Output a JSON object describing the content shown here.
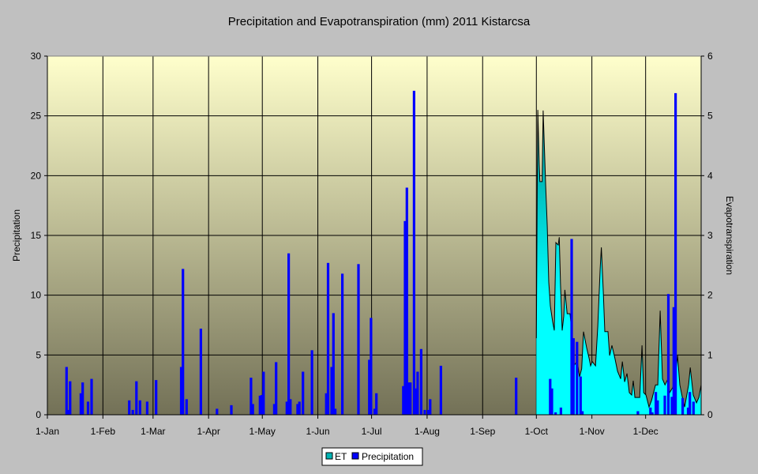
{
  "chart_data": {
    "type": "bar+area",
    "title": "Precipitation and Evapotranspiration (mm) 2011 Kistarcsa",
    "ylabel": "Precipitation",
    "y2label": "Evapotranspiration",
    "ylim": [
      0,
      30
    ],
    "y2lim": [
      0,
      6
    ],
    "yticks": [
      "0",
      "5",
      "10",
      "15",
      "20",
      "25",
      "30"
    ],
    "y2ticks": [
      "0",
      "1",
      "2",
      "3",
      "4",
      "5",
      "6"
    ],
    "xticks": [
      {
        "label": "1-Jan",
        "day": 0
      },
      {
        "label": "1-Feb",
        "day": 31
      },
      {
        "label": "1-Mar",
        "day": 59
      },
      {
        "label": "1-Apr",
        "day": 90
      },
      {
        "label": "1-May",
        "day": 120
      },
      {
        "label": "1-Jun",
        "day": 151
      },
      {
        "label": "1-Jul",
        "day": 181
      },
      {
        "label": "1-Aug",
        "day": 212
      },
      {
        "label": "1-Sep",
        "day": 243
      },
      {
        "label": "1-Oct",
        "day": 273
      },
      {
        "label": "1-Nov",
        "day": 304
      },
      {
        "label": "1-Dec",
        "day": 334
      }
    ],
    "days_in_year": 365,
    "grid": true,
    "legend": {
      "placement": "bottom",
      "items": [
        "ET",
        "Precipitation"
      ]
    },
    "colors": {
      "precipitation": "#0000ff",
      "et_top": "#009090",
      "et_bottom": "#00ffff",
      "plot_top": "#ffffcc",
      "plot_bottom": "#737157"
    },
    "series": [
      {
        "name": "Precipitation",
        "kind": "bar",
        "axis": "left",
        "points": [
          [
            10,
            4.0
          ],
          [
            11,
            0.4
          ],
          [
            12,
            2.8
          ],
          [
            18,
            1.8
          ],
          [
            19,
            2.7
          ],
          [
            22,
            1.1
          ],
          [
            24,
            3.0
          ],
          [
            45,
            1.2
          ],
          [
            47,
            0.4
          ],
          [
            49,
            2.8
          ],
          [
            51,
            1.2
          ],
          [
            55,
            1.1
          ],
          [
            60,
            2.9
          ],
          [
            74,
            4.0
          ],
          [
            75,
            12.2
          ],
          [
            77,
            1.3
          ],
          [
            85,
            7.2
          ],
          [
            94,
            0.5
          ],
          [
            102,
            0.8
          ],
          [
            113,
            3.1
          ],
          [
            114,
            0.9
          ],
          [
            118,
            1.6
          ],
          [
            119,
            1.65
          ],
          [
            120,
            3.6
          ],
          [
            126,
            0.9
          ],
          [
            127,
            4.4
          ],
          [
            133,
            1.1
          ],
          [
            134,
            13.5
          ],
          [
            135,
            1.3
          ],
          [
            139,
            0.9
          ],
          [
            140,
            1.1
          ],
          [
            142,
            3.6
          ],
          [
            147,
            5.4
          ],
          [
            155,
            1.8
          ],
          [
            156,
            12.7
          ],
          [
            158,
            4.0
          ],
          [
            159,
            8.5
          ],
          [
            160,
            0.5
          ],
          [
            164,
            11.8
          ],
          [
            173,
            12.6
          ],
          [
            179,
            4.6
          ],
          [
            180,
            8.1
          ],
          [
            182,
            0.5
          ],
          [
            183,
            1.8
          ],
          [
            198,
            2.4
          ],
          [
            199,
            16.2
          ],
          [
            200,
            19.0
          ],
          [
            201,
            2.7
          ],
          [
            202,
            2.7
          ],
          [
            204,
            27.1
          ],
          [
            205,
            2.2
          ],
          [
            206,
            3.6
          ],
          [
            208,
            5.5
          ],
          [
            210,
            0.4
          ],
          [
            212,
            0.4
          ],
          [
            213,
            1.3
          ],
          [
            219,
            4.1
          ],
          [
            261,
            3.1
          ],
          [
            280,
            3.0
          ],
          [
            281,
            2.2
          ],
          [
            283,
            0.2
          ],
          [
            286,
            0.6
          ],
          [
            292,
            14.7
          ],
          [
            293,
            6.4
          ],
          [
            295,
            6.1
          ],
          [
            297,
            3.2
          ],
          [
            298,
            0.3
          ],
          [
            329,
            0.3
          ],
          [
            336,
            0.6
          ],
          [
            337,
            0.2
          ],
          [
            339,
            1.9
          ],
          [
            340,
            1.2
          ],
          [
            344,
            1.6
          ],
          [
            346,
            10.1
          ],
          [
            348,
            1.5
          ],
          [
            349,
            9.0
          ],
          [
            350,
            26.9
          ],
          [
            354,
            1.4
          ],
          [
            357,
            0.6
          ],
          [
            358,
            1.9
          ],
          [
            360,
            1.1
          ]
        ]
      },
      {
        "name": "ET",
        "kind": "area",
        "axis": "right",
        "points": [
          [
            273.0,
            1.28
          ],
          [
            273.5,
            3.83
          ],
          [
            273.8,
            5.1
          ],
          [
            274.6,
            4.19
          ],
          [
            275.0,
            3.9
          ],
          [
            276.2,
            3.9
          ],
          [
            276.8,
            5.09
          ],
          [
            277.1,
            4.82
          ],
          [
            278.2,
            3.83
          ],
          [
            279.1,
            3.15
          ],
          [
            279.9,
            2.22
          ],
          [
            280.8,
            1.82
          ],
          [
            282.1,
            1.56
          ],
          [
            283.0,
            1.41
          ],
          [
            283.9,
            2.88
          ],
          [
            285.2,
            2.84
          ],
          [
            285.8,
            2.97
          ],
          [
            286.5,
            2.18
          ],
          [
            287.4,
            1.41
          ],
          [
            288.3,
            1.65
          ],
          [
            288.9,
            2.09
          ],
          [
            290.2,
            1.69
          ],
          [
            291.8,
            1.69
          ],
          [
            293.2,
            1.28
          ],
          [
            294.0,
            0.82
          ],
          [
            295.8,
            0.9
          ],
          [
            297.1,
            0.63
          ],
          [
            298.3,
            0.77
          ],
          [
            299.3,
            1.39
          ],
          [
            301.1,
            1.12
          ],
          [
            302.4,
            0.95
          ],
          [
            303.3,
            0.82
          ],
          [
            304.2,
            0.89
          ],
          [
            306.0,
            0.82
          ],
          [
            307.3,
            1.48
          ],
          [
            308.6,
            2.44
          ],
          [
            309.3,
            2.8
          ],
          [
            310.4,
            2.05
          ],
          [
            311.2,
            1.39
          ],
          [
            313.0,
            1.39
          ],
          [
            313.9,
            0.99
          ],
          [
            315.2,
            1.16
          ],
          [
            316.8,
            0.95
          ],
          [
            318.3,
            0.73
          ],
          [
            320.1,
            0.6
          ],
          [
            321.0,
            0.89
          ],
          [
            322.3,
            0.55
          ],
          [
            323.6,
            0.69
          ],
          [
            324.9,
            0.37
          ],
          [
            326.2,
            0.33
          ],
          [
            327.1,
            0.57
          ],
          [
            328.0,
            0.29
          ],
          [
            330.7,
            0.29
          ],
          [
            332.0,
            1.16
          ],
          [
            332.9,
            0.37
          ],
          [
            334.2,
            0.33
          ],
          [
            335.9,
            0.13
          ],
          [
            337.3,
            0.24
          ],
          [
            339.5,
            0.5
          ],
          [
            340.8,
            0.5
          ],
          [
            342.1,
            1.74
          ],
          [
            343.4,
            0.6
          ],
          [
            344.8,
            0.5
          ],
          [
            346.5,
            0.6
          ],
          [
            347.4,
            0.37
          ],
          [
            349.2,
            0.46
          ],
          [
            350.9,
            0.73
          ],
          [
            351.8,
            0.99
          ],
          [
            353.1,
            0.5
          ],
          [
            354.5,
            0.29
          ],
          [
            355.8,
            0.13
          ],
          [
            358.0,
            0.5
          ],
          [
            358.9,
            0.79
          ],
          [
            360.6,
            0.33
          ],
          [
            362.4,
            0.2
          ],
          [
            363.7,
            0.29
          ],
          [
            365.0,
            0.5
          ]
        ]
      }
    ]
  }
}
